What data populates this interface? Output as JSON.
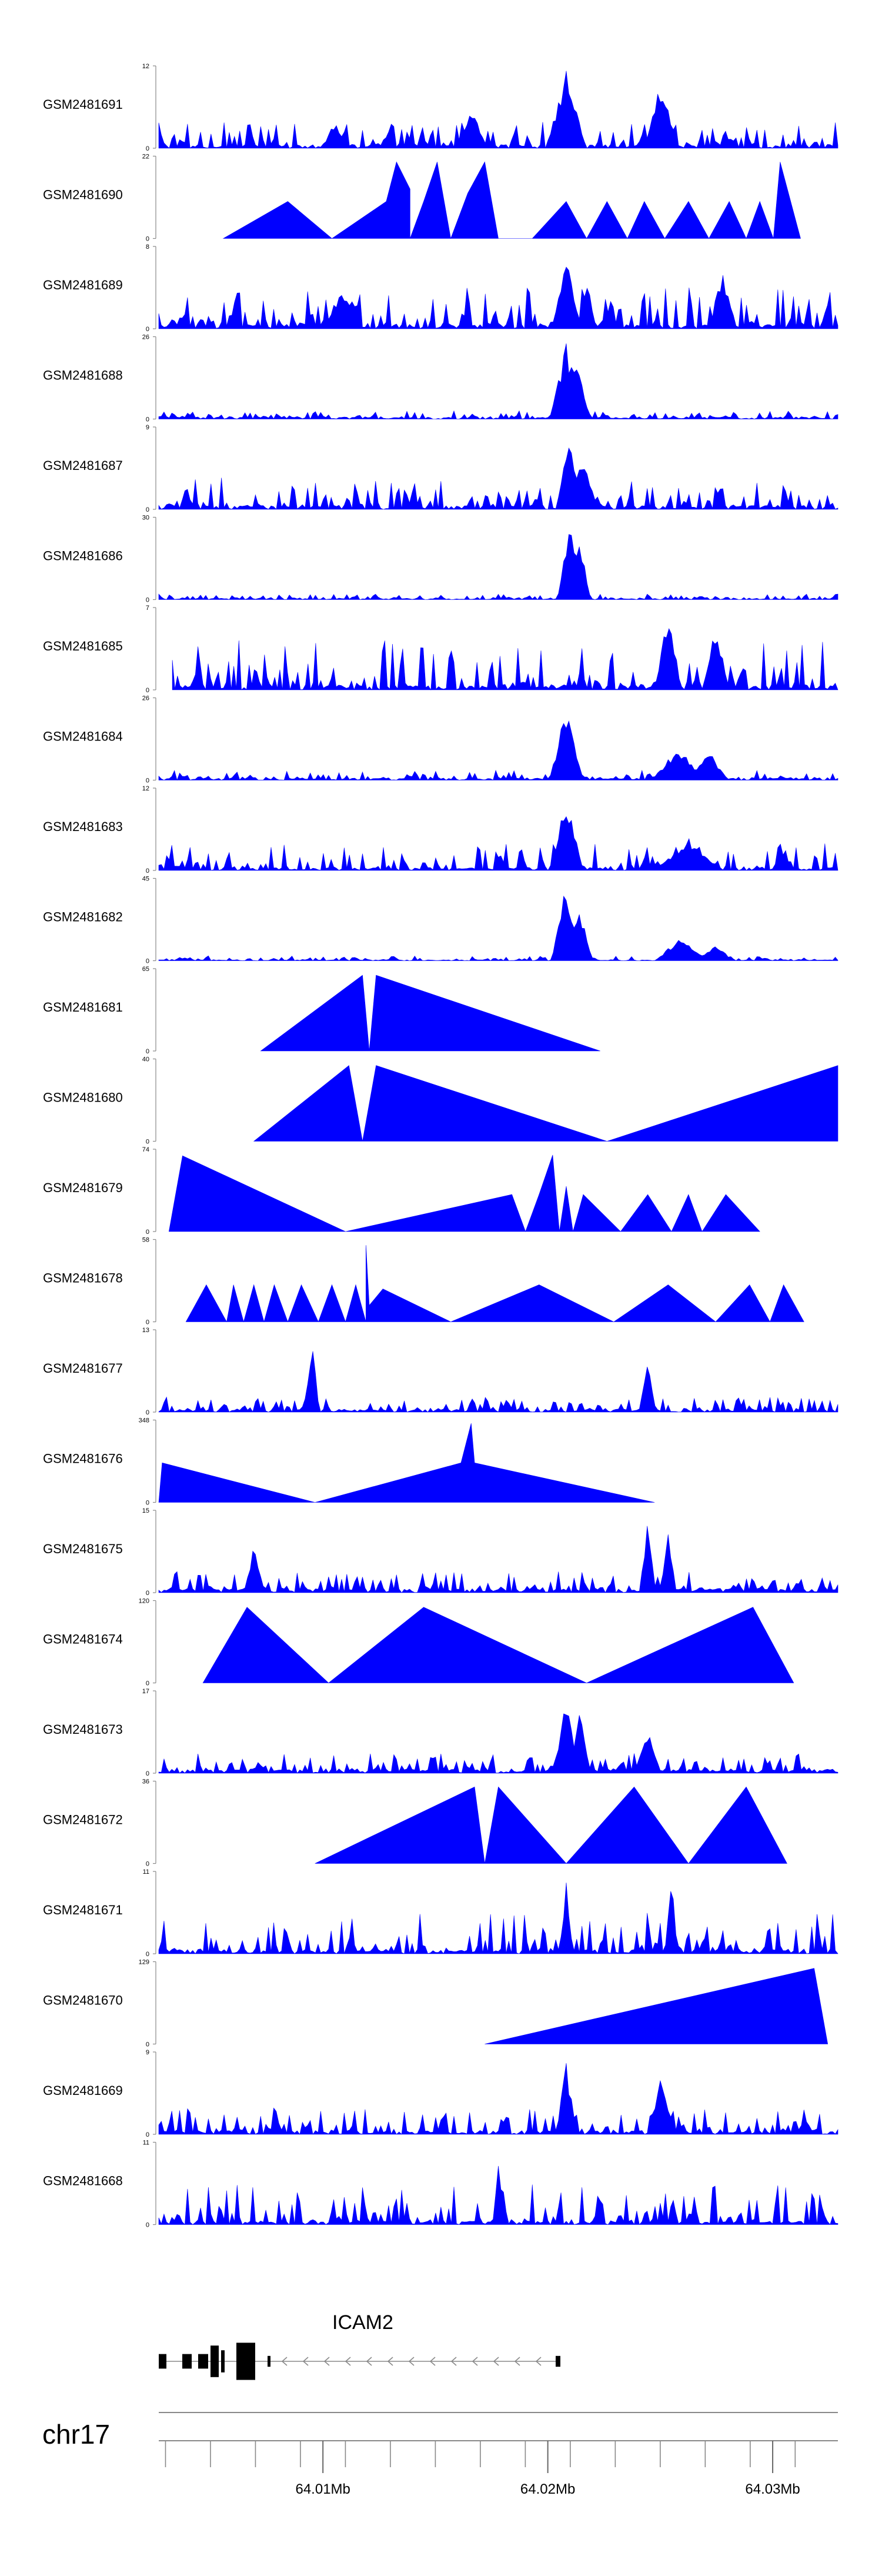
{
  "chart_data": {
    "type": "area",
    "title": "",
    "fill_color": "#0000ff",
    "xlabel": "",
    "ylabel": "",
    "xlim": [
      64.0027,
      64.0329
    ],
    "tracks": [
      {
        "name": "GSM2481691",
        "ymax": "12",
        "kind": "dense",
        "baseline": 0.04,
        "amp": 0.28,
        "peaks": [
          {
            "x": 0.6,
            "h": 0.95,
            "w": 0.03
          },
          {
            "x": 0.46,
            "h": 0.5,
            "w": 0.025
          },
          {
            "x": 0.74,
            "h": 0.85,
            "w": 0.025
          },
          {
            "x": 0.26,
            "h": 0.35,
            "w": 0.02
          }
        ]
      },
      {
        "name": "GSM2481690",
        "ymax": "22",
        "kind": "sparse",
        "vertices": [
          [
            0.095,
            0
          ],
          [
            0.19,
            0.45
          ],
          [
            0.255,
            0
          ],
          [
            0.335,
            0.45
          ],
          [
            0.35,
            0.93
          ],
          [
            0.37,
            0.6
          ],
          [
            0.37,
            0
          ],
          [
            0.39,
            0.45
          ],
          [
            0.41,
            0.93
          ],
          [
            0.43,
            0
          ],
          [
            0.455,
            0.55
          ],
          [
            0.48,
            0.93
          ],
          [
            0.5,
            0
          ],
          [
            0.55,
            0
          ],
          [
            0.6,
            0.45
          ],
          [
            0.63,
            0
          ],
          [
            0.66,
            0.45
          ],
          [
            0.69,
            0
          ],
          [
            0.715,
            0.45
          ],
          [
            0.745,
            0
          ],
          [
            0.78,
            0.45
          ],
          [
            0.81,
            0
          ],
          [
            0.84,
            0.45
          ],
          [
            0.865,
            0
          ],
          [
            0.885,
            0.45
          ],
          [
            0.905,
            0
          ],
          [
            0.915,
            0.93
          ],
          [
            0.945,
            0
          ]
        ]
      },
      {
        "name": "GSM2481689",
        "ymax": "8",
        "kind": "dense",
        "baseline": 0.05,
        "amp": 0.45,
        "peaks": [
          {
            "x": 0.6,
            "h": 0.95,
            "w": 0.02
          },
          {
            "x": 0.63,
            "h": 0.6,
            "w": 0.015
          },
          {
            "x": 0.83,
            "h": 0.75,
            "w": 0.02
          },
          {
            "x": 0.27,
            "h": 0.45,
            "w": 0.03
          }
        ]
      },
      {
        "name": "GSM2481688",
        "ymax": "26",
        "kind": "dense",
        "baseline": 0.02,
        "amp": 0.08,
        "peaks": [
          {
            "x": 0.6,
            "h": 0.92,
            "w": 0.025
          },
          {
            "x": 0.615,
            "h": 0.7,
            "w": 0.02
          }
        ]
      },
      {
        "name": "GSM2481687",
        "ymax": "9",
        "kind": "dense",
        "baseline": 0.04,
        "amp": 0.35,
        "peaks": [
          {
            "x": 0.605,
            "h": 0.9,
            "w": 0.02
          },
          {
            "x": 0.625,
            "h": 0.75,
            "w": 0.02
          }
        ]
      },
      {
        "name": "GSM2481686",
        "ymax": "30",
        "kind": "dense",
        "baseline": 0.01,
        "amp": 0.06,
        "peaks": [
          {
            "x": 0.605,
            "h": 0.92,
            "w": 0.018
          },
          {
            "x": 0.62,
            "h": 0.8,
            "w": 0.016
          }
        ]
      },
      {
        "name": "GSM2481685",
        "ymax": "7",
        "kind": "dense",
        "baseline": 0.05,
        "amp": 0.55,
        "start": 0.02,
        "peaks": [
          {
            "x": 0.75,
            "h": 0.95,
            "w": 0.02
          },
          {
            "x": 0.82,
            "h": 0.8,
            "w": 0.02
          }
        ]
      },
      {
        "name": "GSM2481684",
        "ymax": "26",
        "kind": "dense",
        "baseline": 0.02,
        "amp": 0.1,
        "peaks": [
          {
            "x": 0.6,
            "h": 0.9,
            "w": 0.025
          },
          {
            "x": 0.765,
            "h": 0.4,
            "w": 0.04
          },
          {
            "x": 0.81,
            "h": 0.35,
            "w": 0.03
          }
        ]
      },
      {
        "name": "GSM2481683",
        "ymax": "12",
        "kind": "dense",
        "baseline": 0.03,
        "amp": 0.3,
        "peaks": [
          {
            "x": 0.6,
            "h": 0.88,
            "w": 0.025
          },
          {
            "x": 0.78,
            "h": 0.4,
            "w": 0.05
          }
        ]
      },
      {
        "name": "GSM2481682",
        "ymax": "45",
        "kind": "dense",
        "baseline": 0.01,
        "amp": 0.05,
        "peaks": [
          {
            "x": 0.6,
            "h": 0.95,
            "w": 0.022
          },
          {
            "x": 0.62,
            "h": 0.6,
            "w": 0.02
          },
          {
            "x": 0.77,
            "h": 0.3,
            "w": 0.04
          },
          {
            "x": 0.82,
            "h": 0.22,
            "w": 0.025
          }
        ]
      },
      {
        "name": "GSM2481681",
        "ymax": "65",
        "kind": "sparse",
        "vertices": [
          [
            0.15,
            0
          ],
          [
            0.3,
            0.92
          ],
          [
            0.31,
            0
          ],
          [
            0.32,
            0.92
          ],
          [
            0.65,
            0
          ]
        ]
      },
      {
        "name": "GSM2481680",
        "ymax": "40",
        "kind": "sparse",
        "vertices": [
          [
            0.14,
            0
          ],
          [
            0.28,
            0.92
          ],
          [
            0.3,
            0
          ],
          [
            0.32,
            0.92
          ],
          [
            0.66,
            0
          ],
          [
            1.0,
            0.92
          ],
          [
            1.0,
            0
          ]
        ]
      },
      {
        "name": "GSM2481679",
        "ymax": "74",
        "kind": "sparse",
        "vertices": [
          [
            0.015,
            0
          ],
          [
            0.035,
            0.92
          ],
          [
            0.275,
            0
          ],
          [
            0.52,
            0.45
          ],
          [
            0.54,
            0
          ],
          [
            0.56,
            0.45
          ],
          [
            0.58,
            0.93
          ],
          [
            0.59,
            0
          ],
          [
            0.6,
            0.55
          ],
          [
            0.61,
            0
          ],
          [
            0.625,
            0.45
          ],
          [
            0.68,
            0
          ],
          [
            0.72,
            0.45
          ],
          [
            0.755,
            0
          ],
          [
            0.78,
            0.45
          ],
          [
            0.8,
            0
          ],
          [
            0.835,
            0.45
          ],
          [
            0.885,
            0
          ]
        ]
      },
      {
        "name": "GSM2481678",
        "ymax": "58",
        "kind": "sparse",
        "vertices": [
          [
            0.04,
            0
          ],
          [
            0.07,
            0.45
          ],
          [
            0.1,
            0
          ],
          [
            0.11,
            0.45
          ],
          [
            0.125,
            0
          ],
          [
            0.14,
            0.45
          ],
          [
            0.155,
            0
          ],
          [
            0.17,
            0.45
          ],
          [
            0.19,
            0
          ],
          [
            0.21,
            0.45
          ],
          [
            0.235,
            0
          ],
          [
            0.255,
            0.45
          ],
          [
            0.275,
            0
          ],
          [
            0.29,
            0.45
          ],
          [
            0.305,
            0
          ],
          [
            0.305,
            0.93
          ],
          [
            0.31,
            0.2
          ],
          [
            0.33,
            0.4
          ],
          [
            0.43,
            0
          ],
          [
            0.56,
            0.45
          ],
          [
            0.67,
            0
          ],
          [
            0.75,
            0.45
          ],
          [
            0.82,
            0
          ],
          [
            0.87,
            0.45
          ],
          [
            0.9,
            0
          ],
          [
            0.92,
            0.45
          ],
          [
            0.95,
            0
          ]
        ]
      },
      {
        "name": "GSM2481677",
        "ymax": "13",
        "kind": "dense",
        "baseline": 0.03,
        "amp": 0.18,
        "peaks": [
          {
            "x": 0.225,
            "h": 0.92,
            "w": 0.012
          },
          {
            "x": 0.72,
            "h": 0.78,
            "w": 0.012
          }
        ]
      },
      {
        "name": "GSM2481676",
        "ymax": "348",
        "kind": "sparse",
        "vertices": [
          [
            0.0,
            0
          ],
          [
            0.005,
            0.48
          ],
          [
            0.23,
            0
          ],
          [
            0.445,
            0.48
          ],
          [
            0.46,
            0.96
          ],
          [
            0.465,
            0.48
          ],
          [
            0.73,
            0
          ]
        ]
      },
      {
        "name": "GSM2481675",
        "ymax": "15",
        "kind": "dense",
        "baseline": 0.04,
        "amp": 0.22,
        "peaks": [
          {
            "x": 0.14,
            "h": 0.6,
            "w": 0.015
          },
          {
            "x": 0.72,
            "h": 0.9,
            "w": 0.012
          },
          {
            "x": 0.75,
            "h": 0.8,
            "w": 0.012
          }
        ]
      },
      {
        "name": "GSM2481674",
        "ymax": "120",
        "kind": "sparse",
        "vertices": [
          [
            0.065,
            0
          ],
          [
            0.13,
            0.92
          ],
          [
            0.25,
            0
          ],
          [
            0.39,
            0.92
          ],
          [
            0.63,
            0
          ],
          [
            0.875,
            0.92
          ],
          [
            0.935,
            0
          ]
        ]
      },
      {
        "name": "GSM2481673",
        "ymax": "17",
        "kind": "dense",
        "baseline": 0.04,
        "amp": 0.2,
        "peaks": [
          {
            "x": 0.6,
            "h": 0.9,
            "w": 0.02
          },
          {
            "x": 0.62,
            "h": 0.75,
            "w": 0.015
          },
          {
            "x": 0.72,
            "h": 0.55,
            "w": 0.02
          }
        ]
      },
      {
        "name": "GSM2481672",
        "ymax": "36",
        "kind": "sparse",
        "vertices": [
          [
            0.23,
            0
          ],
          [
            0.465,
            0.93
          ],
          [
            0.48,
            0
          ],
          [
            0.5,
            0.93
          ],
          [
            0.6,
            0
          ],
          [
            0.7,
            0.93
          ],
          [
            0.78,
            0
          ],
          [
            0.865,
            0.93
          ],
          [
            0.925,
            0
          ]
        ]
      },
      {
        "name": "GSM2481671",
        "ymax": "11",
        "kind": "dense",
        "baseline": 0.05,
        "amp": 0.45,
        "peaks": [
          {
            "x": 0.6,
            "h": 0.9,
            "w": 0.01
          },
          {
            "x": 0.755,
            "h": 0.92,
            "w": 0.01
          }
        ]
      },
      {
        "name": "GSM2481670",
        "ymax": "129",
        "kind": "sparse",
        "vertices": [
          [
            0.48,
            0
          ],
          [
            0.965,
            0.92
          ],
          [
            0.985,
            0
          ]
        ]
      },
      {
        "name": "GSM2481669",
        "ymax": "9",
        "kind": "dense",
        "baseline": 0.04,
        "amp": 0.28,
        "peaks": [
          {
            "x": 0.6,
            "h": 0.9,
            "w": 0.015
          },
          {
            "x": 0.74,
            "h": 0.75,
            "w": 0.02
          }
        ]
      },
      {
        "name": "GSM2481668",
        "ymax": "11",
        "kind": "dense",
        "baseline": 0.04,
        "amp": 0.45,
        "peaks": [
          {
            "x": 0.5,
            "h": 0.92,
            "w": 0.008
          }
        ]
      }
    ],
    "gene": {
      "name": "ICAM2",
      "strand": "-"
    },
    "chromosome": "chr17",
    "axis_ticks": [
      {
        "value": 64.01,
        "label": "64.01Mb"
      },
      {
        "value": 64.02,
        "label": "64.02Mb"
      },
      {
        "value": 64.03,
        "label": "64.03Mb"
      }
    ]
  }
}
